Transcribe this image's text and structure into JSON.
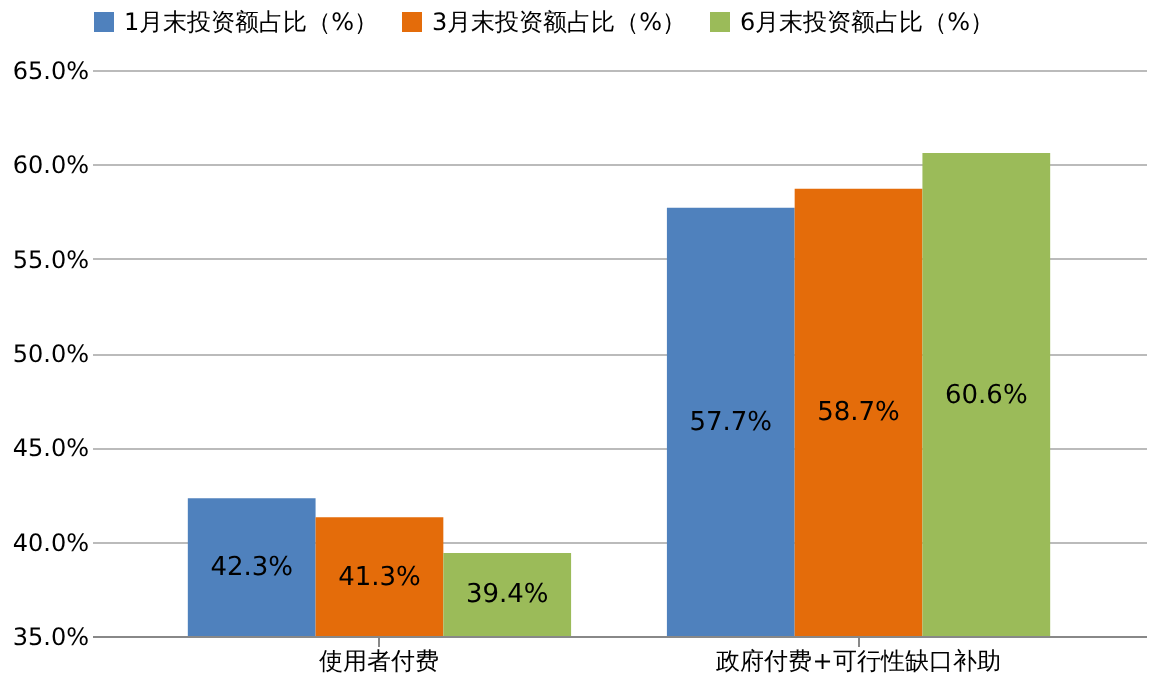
{
  "chart_data": {
    "type": "bar",
    "categories": [
      "使用者付费",
      "政府付费+可行性缺口补助"
    ],
    "series": [
      {
        "name": "1月末投资额占比（%）",
        "color": "#4f81bd",
        "values": [
          42.3,
          57.7
        ],
        "value_labels": [
          "42.3%",
          "57.7%"
        ]
      },
      {
        "name": "3月末投资额占比（%）",
        "color": "#e46c0a",
        "values": [
          41.3,
          58.7
        ],
        "value_labels": [
          "41.3%",
          "58.7%"
        ]
      },
      {
        "name": "6月末投资额占比（%）",
        "color": "#9bbb59",
        "values": [
          39.4,
          60.6
        ],
        "value_labels": [
          "39.4%",
          "60.6%"
        ]
      }
    ],
    "ylim": [
      35,
      65
    ],
    "yticks": [
      {
        "value": 35,
        "label": "35.0%"
      },
      {
        "value": 40,
        "label": "40.0%"
      },
      {
        "value": 45,
        "label": "45.0%"
      },
      {
        "value": 50,
        "label": "50.0%"
      },
      {
        "value": 55,
        "label": "55.0%"
      },
      {
        "value": 60,
        "label": "60.0%"
      },
      {
        "value": 65,
        "label": "65.0%"
      }
    ],
    "grid": "y",
    "legend": "top"
  }
}
